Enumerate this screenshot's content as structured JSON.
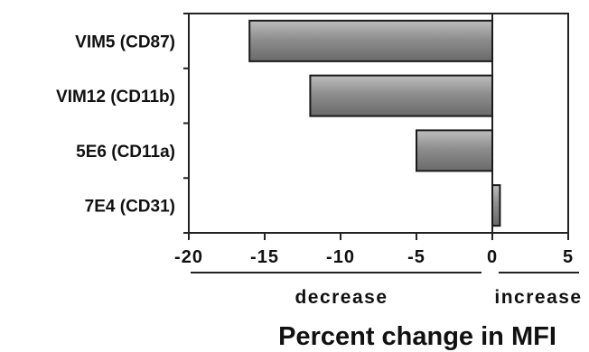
{
  "chart_data": {
    "type": "bar",
    "orientation": "horizontal",
    "categories": [
      "VIM5 (CD87)",
      "VIM12 (CD11b)",
      "5E6 (CD11a)",
      "7E4 (CD31)"
    ],
    "values": [
      -16,
      -12,
      -5,
      0.5
    ],
    "xlabel": "Percent change in MFI",
    "xlim": [
      -20,
      5
    ],
    "xticks": [
      -20,
      -15,
      -10,
      -5,
      0,
      5
    ],
    "direction_labels": {
      "negative": "decrease",
      "positive": "increase"
    },
    "grid": false,
    "bar_color": "#8c8c8c"
  }
}
